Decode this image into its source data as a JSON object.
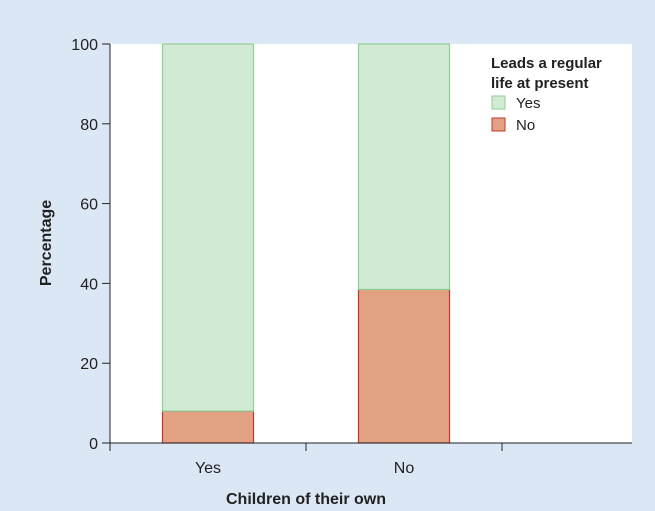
{
  "chart_data": {
    "type": "bar",
    "stacked": true,
    "categories": [
      "Yes",
      "No"
    ],
    "series": [
      {
        "name": "No",
        "values": [
          8,
          38.5
        ],
        "color": "#e3a184",
        "stroke": "#c0392b"
      },
      {
        "name": "Yes",
        "values": [
          92,
          61.5
        ],
        "color": "#d1ead3",
        "stroke": "#8fcf97"
      }
    ],
    "xlabel": "Children of their own",
    "ylabel": "Percentage",
    "ylim": [
      0,
      100
    ],
    "yticks": [
      0,
      20,
      40,
      60,
      80,
      100
    ],
    "grid": false,
    "legend": {
      "title_lines": [
        "Leads a regular",
        "life at present"
      ],
      "placement": "top-right",
      "items": [
        "Yes",
        "No"
      ]
    },
    "colors": {
      "background": "#dbe7f5",
      "plot": "#ffffff",
      "axis": "#222222"
    }
  }
}
